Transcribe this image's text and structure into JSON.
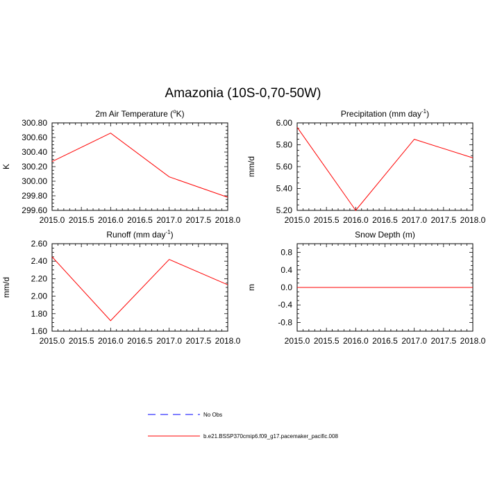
{
  "title": "Amazonia (10S-0,70-50W)",
  "chart_data": [
    {
      "type": "line",
      "title": "2m Air Temperature (°K)",
      "title_main": "2m Air Temperature (",
      "title_sup": "o",
      "title_rest": "K)",
      "ylabel": "K",
      "xlim": [
        2015.0,
        2018.0
      ],
      "ylim": [
        299.6,
        300.8
      ],
      "xticks": [
        "2015.0",
        "2015.5",
        "2016.0",
        "2016.5",
        "2017.0",
        "2017.5",
        "2018.0"
      ],
      "yticks": [
        "299.60",
        "299.80",
        "300.00",
        "300.20",
        "300.40",
        "300.60",
        "300.80"
      ],
      "x": [
        2015.0,
        2016.0,
        2017.0,
        2018.0
      ],
      "series": [
        {
          "name": "b.e21.BSSP370cmip6.f09_g17.pacemaker_pacific.008",
          "values": [
            300.27,
            300.66,
            300.06,
            299.78
          ],
          "color": "#ff0000"
        }
      ]
    },
    {
      "type": "line",
      "title": "Precipitation (mm day-1)",
      "title_main": "Precipitation (mm day",
      "title_sup": "-1",
      "title_rest": ")",
      "ylabel": "mm/d",
      "xlim": [
        2015.0,
        2018.0
      ],
      "ylim": [
        5.2,
        6.0
      ],
      "xticks": [
        "2015.0",
        "2015.5",
        "2016.0",
        "2016.5",
        "2017.0",
        "2017.5",
        "2018.0"
      ],
      "yticks": [
        "5.20",
        "5.40",
        "5.60",
        "5.80",
        "6.00"
      ],
      "x": [
        2015.0,
        2016.0,
        2017.0,
        2018.0
      ],
      "series": [
        {
          "name": "b.e21.BSSP370cmip6.f09_g17.pacemaker_pacific.008",
          "values": [
            5.96,
            5.2,
            5.85,
            5.68
          ],
          "color": "#ff0000"
        }
      ]
    },
    {
      "type": "line",
      "title": "Runoff (mm day-1)",
      "title_main": "Runoff (mm day",
      "title_sup": "-1",
      "title_rest": ")",
      "ylabel": "mm/d",
      "xlim": [
        2015.0,
        2018.0
      ],
      "ylim": [
        1.6,
        2.6
      ],
      "xticks": [
        "2015.0",
        "2015.5",
        "2016.0",
        "2016.5",
        "2017.0",
        "2017.5",
        "2018.0"
      ],
      "yticks": [
        "1.60",
        "1.80",
        "2.00",
        "2.20",
        "2.40",
        "2.60"
      ],
      "x": [
        2015.0,
        2016.0,
        2017.0,
        2018.0
      ],
      "series": [
        {
          "name": "b.e21.BSSP370cmip6.f09_g17.pacemaker_pacific.008",
          "values": [
            2.45,
            1.72,
            2.42,
            2.13
          ],
          "color": "#ff0000"
        }
      ]
    },
    {
      "type": "line",
      "title": "Snow Depth (m)",
      "title_main": "Snow Depth (m)",
      "title_sup": "",
      "title_rest": "",
      "ylabel": "m",
      "xlim": [
        2015.0,
        2018.0
      ],
      "ylim": [
        -1.0,
        1.0
      ],
      "xticks": [
        "2015.0",
        "2015.5",
        "2016.0",
        "2016.5",
        "2017.0",
        "2017.5",
        "2018.0"
      ],
      "yticks": [
        "-0.8",
        "-0.4",
        "0.0",
        "0.4",
        "0.8"
      ],
      "x": [
        2015.0,
        2016.0,
        2017.0,
        2018.0
      ],
      "series": [
        {
          "name": "b.e21.BSSP370cmip6.f09_g17.pacemaker_pacific.008",
          "values": [
            0.0,
            0.0,
            0.0,
            0.0
          ],
          "color": "#ff0000"
        }
      ]
    }
  ],
  "legend": [
    {
      "label": "No Obs",
      "color": "#0000ff",
      "dash": true
    },
    {
      "label": "b.e21.BSSP370cmip6.f09_g17.pacemaker_pacific.008",
      "color": "#ff0000",
      "dash": false
    }
  ]
}
